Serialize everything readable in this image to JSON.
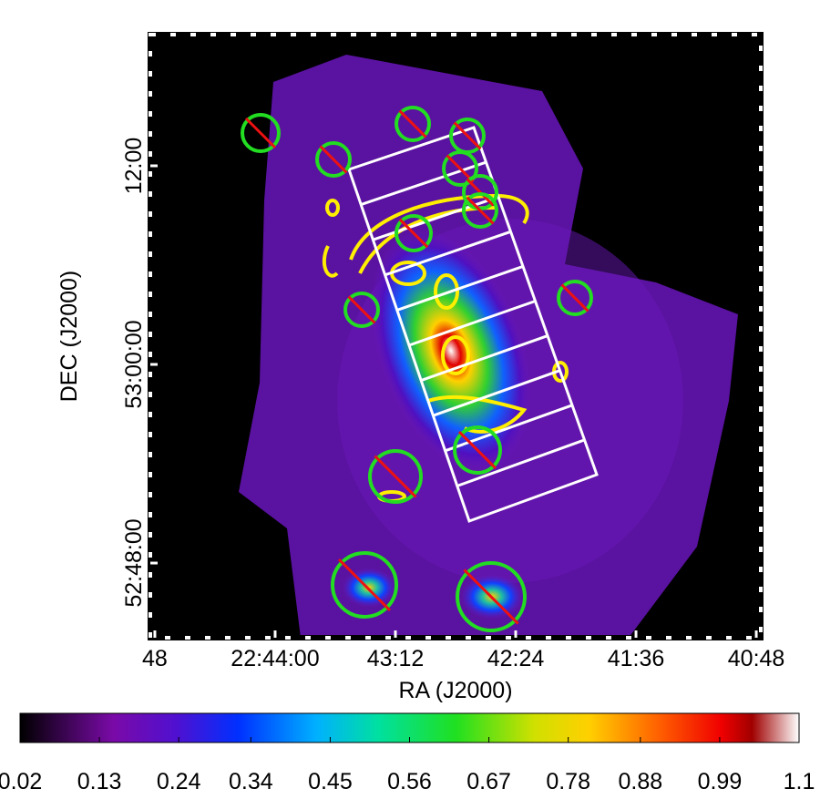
{
  "chart_data": {
    "type": "image",
    "x_label": "RA (J2000)",
    "y_label": "DEC (J2000)",
    "xlim": [
      2689.8,
      2446.2
    ],
    "xticks": [
      {
        "value": 2688,
        "label": "48"
      },
      {
        "value": 2640,
        "label": "22:44:00"
      },
      {
        "value": 2592,
        "label": "43:12"
      },
      {
        "value": 2544,
        "label": "42:24"
      },
      {
        "value": 2496,
        "label": "41:36"
      },
      {
        "value": 2448,
        "label": "40:48"
      }
    ],
    "ylim": [
      52.7248,
      53.3321
    ],
    "yticks": [
      {
        "value": 52.8,
        "label": "52:48:00"
      },
      {
        "value": 53.0,
        "label": "53:00:00"
      },
      {
        "value": 53.2,
        "label": "12:00"
      }
    ],
    "colorbar": {
      "lim": [
        0.02,
        1.1
      ],
      "ticks": [
        0.02,
        0.13,
        0.24,
        0.34,
        0.45,
        0.56,
        0.67,
        0.78,
        0.88,
        0.99,
        1.1
      ]
    }
  }
}
